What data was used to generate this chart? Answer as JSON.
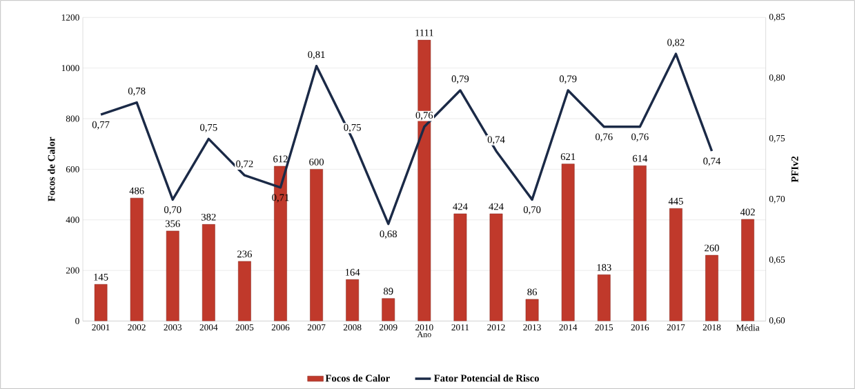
{
  "chart_data": {
    "type": "bar",
    "xlabel": "Ano",
    "ylabel": "Focos de Calor",
    "y2label": "PFIv2",
    "categories": [
      "2001",
      "2002",
      "2003",
      "2004",
      "2005",
      "2006",
      "2007",
      "2008",
      "2009",
      "2010",
      "2011",
      "2012",
      "2013",
      "2014",
      "2015",
      "2016",
      "2017",
      "2018",
      "Média"
    ],
    "series": [
      {
        "name": "Focos de Calor",
        "color": "#c0392b",
        "values": [
          145,
          486,
          356,
          382,
          236,
          612,
          600,
          164,
          89,
          1111,
          424,
          424,
          86,
          621,
          183,
          614,
          445,
          260,
          402
        ],
        "value_labels": [
          "145",
          "486",
          "356",
          "382",
          "236",
          "612",
          "600",
          "164",
          "89",
          "1111",
          "424",
          "424",
          "86",
          "621",
          "183",
          "614",
          "445",
          "260",
          "402"
        ]
      },
      {
        "name": "Fator Potencial de Risco",
        "type": "line",
        "axis": "y2",
        "color": "#1b2a47",
        "values": [
          0.77,
          0.78,
          0.7,
          0.75,
          0.72,
          0.71,
          0.81,
          0.75,
          0.68,
          0.76,
          0.79,
          0.74,
          0.7,
          0.79,
          0.76,
          0.76,
          0.82,
          0.74,
          null
        ],
        "value_labels": [
          "0,77",
          "0,78",
          "0,70",
          "0,75",
          "0,72",
          "0,71",
          "0,81",
          "0,75",
          "0,68",
          "0,76",
          "0,79",
          "0,74",
          "0,70",
          "0,79",
          "0,76",
          "0,76",
          "0,82",
          "0,74",
          null
        ]
      }
    ],
    "ylim": [
      0,
      1200
    ],
    "yticks": [
      0,
      200,
      400,
      600,
      800,
      1000,
      1200
    ],
    "y2lim": [
      0.6,
      0.85
    ],
    "y2ticks": [
      {
        "value": 0.6,
        "label": "0,60"
      },
      {
        "value": 0.65,
        "label": "0,65"
      },
      {
        "value": 0.7,
        "label": "0,70"
      },
      {
        "value": 0.75,
        "label": "0,75"
      },
      {
        "value": 0.8,
        "label": "0,80"
      },
      {
        "value": 0.85,
        "label": "0,85"
      }
    ],
    "grid": "y",
    "legend": "bottom"
  }
}
